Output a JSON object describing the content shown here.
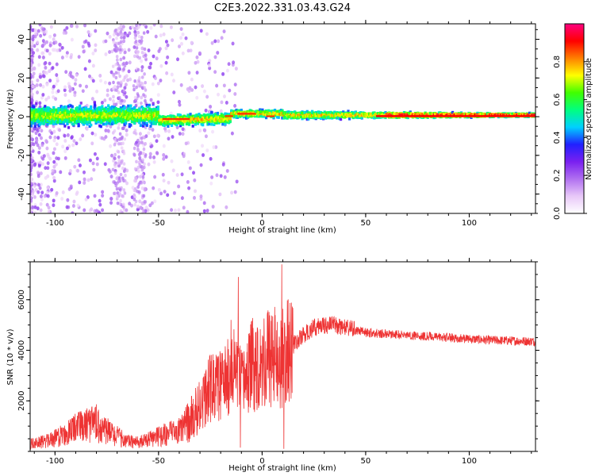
{
  "chart_data": [
    {
      "type": "heatmap",
      "title": "C2E3.2022.331.03.43.G24",
      "xlabel": "Height of straight line (km)",
      "ylabel": "Frequency (Hz)",
      "xlim": [
        -112,
        132
      ],
      "ylim": [
        -50,
        48
      ],
      "xticks": [
        -100,
        -50,
        0,
        50,
        100
      ],
      "yticks": [
        -40,
        -20,
        0,
        20,
        40
      ],
      "colorbar": {
        "label": "Normalized spectral amplitude",
        "range": [
          0,
          1
        ],
        "ticks": [
          "0.0",
          "0.2",
          "0.4",
          "0.6",
          "0.8"
        ],
        "colors": [
          "#ffffff",
          "#e8c8f8",
          "#b070f0",
          "#7a20f0",
          "#2020ff",
          "#00d0ff",
          "#00ff80",
          "#40ff00",
          "#ffff00",
          "#ff8000",
          "#ff0000",
          "#ff0080"
        ]
      }
    },
    {
      "type": "line",
      "xlabel": "Height of straight line (km)",
      "ylabel": "SNR (10 * v/v)",
      "xlim": [
        -112,
        132
      ],
      "ylim": [
        0,
        7500
      ],
      "xticks": [
        -100,
        -50,
        0,
        50,
        100
      ],
      "yticks": [
        2000,
        4000,
        6000
      ],
      "color": "#ee3333",
      "series": [
        {
          "x": [
            -112,
            -105,
            -100,
            -95,
            -90,
            -85,
            -80,
            -75,
            -70,
            -65,
            -60,
            -55,
            -50,
            -45,
            -40,
            -35,
            -30,
            -25,
            -20,
            -15,
            -12,
            -10,
            -5,
            0,
            5,
            8,
            10,
            15,
            20,
            25,
            30,
            35,
            40,
            45,
            50,
            60,
            70,
            80,
            90,
            100,
            110,
            120,
            132
          ],
          "y": [
            300,
            400,
            500,
            700,
            900,
            1000,
            1100,
            800,
            600,
            400,
            350,
            450,
            600,
            700,
            800,
            1200,
            1800,
            2500,
            2600,
            3000,
            3300,
            2600,
            3400,
            3600,
            3800,
            3500,
            3700,
            4200,
            4600,
            4900,
            5000,
            5000,
            4900,
            4800,
            4700,
            4650,
            4600,
            4550,
            4500,
            4450,
            4400,
            4380,
            4350
          ]
        }
      ],
      "spikes": [
        {
          "x": -15,
          "y": 5200
        },
        {
          "x": -11.5,
          "y": 6900
        },
        {
          "x": -10.5,
          "y": 150
        },
        {
          "x": 9.5,
          "y": 7400
        },
        {
          "x": 10.5,
          "y": 100
        }
      ]
    }
  ]
}
